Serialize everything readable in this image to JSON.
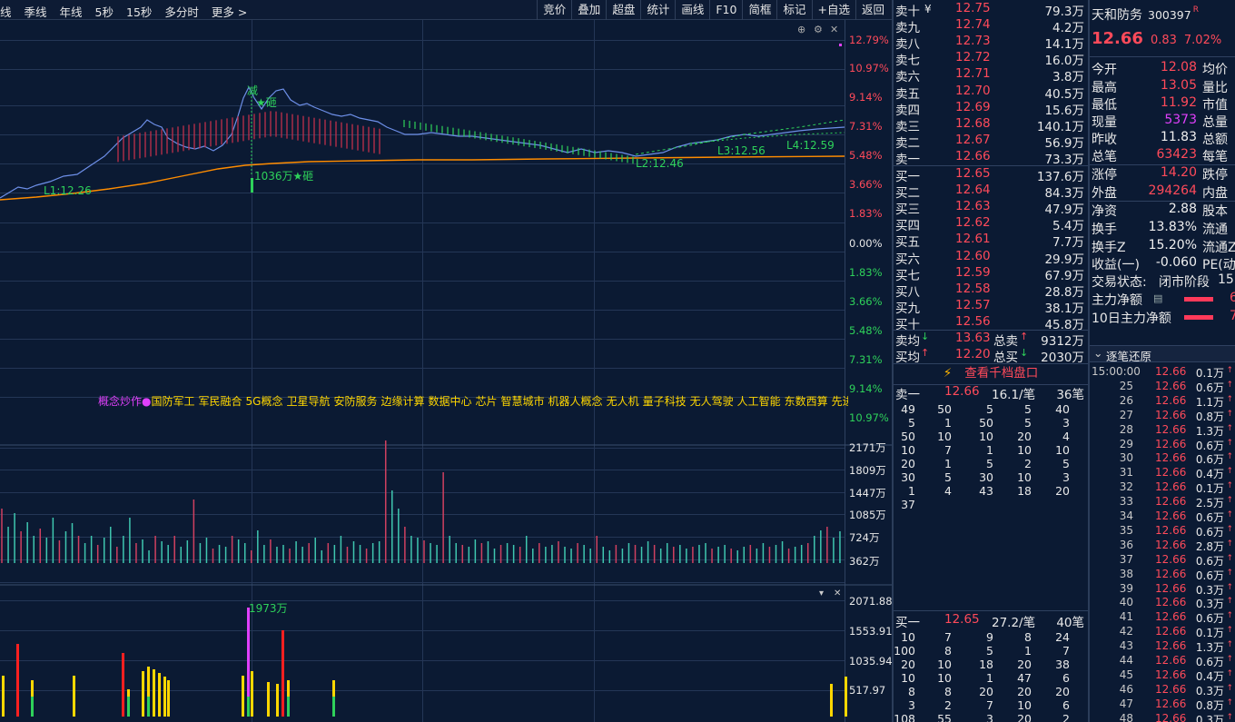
{
  "toolbar": {
    "left": [
      "线",
      "季线",
      "年线",
      "5秒",
      "15秒",
      "多分时",
      "更多 >"
    ],
    "right": [
      "竞价",
      "叠加",
      "超盘",
      "统计",
      "画线",
      "F10",
      "简框",
      "标记",
      "+自选",
      "返回"
    ]
  },
  "price_chart": {
    "right_axis": [
      "12.79%",
      "10.97%",
      "9.14%",
      "7.31%",
      "5.48%",
      "3.66%",
      "1.83%",
      "0.00%",
      "1.83%",
      "3.66%",
      "5.48%",
      "7.31%",
      "9.14%",
      "10.97%"
    ],
    "annotations": [
      "L1:12.26",
      "L2:12.46",
      "L3:12.56",
      "L4:12.59",
      "1036万★砸",
      "★砸",
      "减"
    ],
    "colors": {
      "price_line": "#6d8fe8",
      "avg_line": "#ff8c00",
      "forecast_line": "#2ed15a"
    }
  },
  "concepts": {
    "label": "概念炒作●",
    "items": [
      "国防军工",
      "军民融合",
      "5G概念",
      "卫星导航",
      "安防服务",
      "边缘计算",
      "数据中心",
      "芯片",
      "智慧城市",
      "机器人概念",
      "无人机",
      "量子科技",
      "无人驾驶",
      "人工智能",
      "东数西算",
      "先进封"
    ]
  },
  "volume_chart": {
    "axis": [
      "2171万",
      "1809万",
      "1447万",
      "1085万",
      "724万",
      "362万"
    ]
  },
  "indicator_chart": {
    "axis": [
      "2071.88",
      "1553.91",
      "1035.94",
      "517.97"
    ],
    "peak_label": "1973万"
  },
  "orderbook": {
    "asks": [
      {
        "label": "卖十",
        "flag": "¥",
        "price": "12.75",
        "vol": "79.3万"
      },
      {
        "label": "卖九",
        "price": "12.74",
        "vol": "4.2万"
      },
      {
        "label": "卖八",
        "price": "12.73",
        "vol": "14.1万"
      },
      {
        "label": "卖七",
        "price": "12.72",
        "vol": "16.0万"
      },
      {
        "label": "卖六",
        "price": "12.71",
        "vol": "3.8万"
      },
      {
        "label": "卖五",
        "price": "12.70",
        "vol": "40.5万"
      },
      {
        "label": "卖四",
        "price": "12.69",
        "vol": "15.6万"
      },
      {
        "label": "卖三",
        "price": "12.68",
        "vol": "140.1万"
      },
      {
        "label": "卖二",
        "price": "12.67",
        "vol": "56.9万"
      },
      {
        "label": "卖一",
        "price": "12.66",
        "vol": "73.3万"
      }
    ],
    "bids": [
      {
        "label": "买一",
        "price": "12.65",
        "vol": "137.6万"
      },
      {
        "label": "买二",
        "price": "12.64",
        "vol": "84.3万"
      },
      {
        "label": "买三",
        "price": "12.63",
        "vol": "47.9万"
      },
      {
        "label": "买四",
        "price": "12.62",
        "vol": "5.4万"
      },
      {
        "label": "买五",
        "price": "12.61",
        "vol": "7.7万"
      },
      {
        "label": "买六",
        "price": "12.60",
        "vol": "29.9万"
      },
      {
        "label": "买七",
        "price": "12.59",
        "vol": "67.9万"
      },
      {
        "label": "买八",
        "price": "12.58",
        "vol": "28.8万"
      },
      {
        "label": "买九",
        "price": "12.57",
        "vol": "38.1万"
      },
      {
        "label": "买十",
        "price": "12.56",
        "vol": "45.8万"
      }
    ],
    "avg_sell": {
      "label": "卖均",
      "price": "13.63",
      "total_label": "总卖",
      "total": "9312万"
    },
    "avg_buy": {
      "label": "买均",
      "price": "12.20",
      "total_label": "总买",
      "total": "2030万"
    },
    "view_qiandang": "查看千档盘口",
    "sell1": {
      "label": "卖一",
      "price": "12.66",
      "per": "16.1/笔",
      "count": "36笔"
    },
    "sell1_grid": [
      [
        "49",
        "50",
        "5",
        "5",
        "40"
      ],
      [
        "5",
        "1",
        "50",
        "5",
        "3"
      ],
      [
        "50",
        "10",
        "10",
        "20",
        "4"
      ],
      [
        "10",
        "7",
        "1",
        "10",
        "10"
      ],
      [
        "20",
        "1",
        "5",
        "2",
        "5"
      ],
      [
        "30",
        "5",
        "30",
        "10",
        "3"
      ],
      [
        "1",
        "4",
        "43",
        "18",
        "20"
      ],
      [
        "37",
        "",
        "",
        "",
        ""
      ]
    ],
    "buy1": {
      "label": "买一",
      "price": "12.65",
      "per": "27.2/笔",
      "count": "40笔"
    },
    "buy1_grid": [
      [
        "10",
        "7",
        "9",
        "8",
        "24"
      ],
      [
        "100",
        "8",
        "5",
        "1",
        "7"
      ],
      [
        "20",
        "10",
        "18",
        "20",
        "38"
      ],
      [
        "10",
        "10",
        "1",
        "47",
        "6"
      ],
      [
        "8",
        "8",
        "20",
        "20",
        "20"
      ],
      [
        "3",
        "2",
        "7",
        "10",
        "6"
      ],
      [
        "108",
        "55",
        "3",
        "20",
        "2"
      ]
    ]
  },
  "quote": {
    "name": "天和防务",
    "code": "300397",
    "badge": "R",
    "last": "12.66",
    "change": "0.83",
    "change_pct": "7.02%",
    "rows": [
      {
        "a": "今开",
        "b": "12.08",
        "bc": "red",
        "c": "均价"
      },
      {
        "a": "最高",
        "b": "13.05",
        "bc": "red",
        "c": "量比"
      },
      {
        "a": "最低",
        "b": "11.92",
        "bc": "red",
        "c": "市值"
      },
      {
        "a": "现量",
        "b": "5373",
        "bc": "purple",
        "c": "总量"
      },
      {
        "a": "昨收",
        "b": "11.83",
        "bc": "white",
        "c": "总额"
      },
      {
        "a": "总笔",
        "b": "63423",
        "bc": "red",
        "c": "每笔"
      },
      {
        "a": "涨停",
        "b": "14.20",
        "bc": "red",
        "c": "跌停"
      },
      {
        "a": "外盘",
        "b": "294264",
        "bc": "red",
        "c": "内盘"
      },
      {
        "a": "净资",
        "b": "2.88",
        "bc": "white",
        "c": "股本"
      },
      {
        "a": "换手",
        "b": "13.83%",
        "bc": "white",
        "c": "流通"
      },
      {
        "a": "换手Z",
        "b": "15.20%",
        "bc": "white",
        "c": "流通Z"
      },
      {
        "a": "收益(一)",
        "b": "-0.060",
        "bc": "white",
        "c": "PE(动"
      }
    ],
    "status_label": "交易状态:",
    "status_value": "闭市阶段",
    "status_time": "15:",
    "main_net_label": "主力净额",
    "main_net_value": "6",
    "main_net10_label": "10日主力净额",
    "main_net10_value": "7"
  },
  "trades": {
    "title": "逐笔还原",
    "rows": [
      {
        "t": "15:00:00",
        "p": "12.66",
        "v": "0.1万"
      },
      {
        "t": "25",
        "p": "12.66",
        "v": "0.6万"
      },
      {
        "t": "26",
        "p": "12.66",
        "v": "1.1万"
      },
      {
        "t": "27",
        "p": "12.66",
        "v": "0.8万"
      },
      {
        "t": "28",
        "p": "12.66",
        "v": "1.3万"
      },
      {
        "t": "29",
        "p": "12.66",
        "v": "0.6万"
      },
      {
        "t": "30",
        "p": "12.66",
        "v": "0.6万"
      },
      {
        "t": "31",
        "p": "12.66",
        "v": "0.4万"
      },
      {
        "t": "32",
        "p": "12.66",
        "v": "0.1万"
      },
      {
        "t": "33",
        "p": "12.66",
        "v": "2.5万"
      },
      {
        "t": "34",
        "p": "12.66",
        "v": "0.6万"
      },
      {
        "t": "35",
        "p": "12.66",
        "v": "0.6万"
      },
      {
        "t": "36",
        "p": "12.66",
        "v": "2.8万"
      },
      {
        "t": "37",
        "p": "12.66",
        "v": "0.6万"
      },
      {
        "t": "38",
        "p": "12.66",
        "v": "0.6万"
      },
      {
        "t": "39",
        "p": "12.66",
        "v": "0.3万"
      },
      {
        "t": "40",
        "p": "12.66",
        "v": "0.3万"
      },
      {
        "t": "41",
        "p": "12.66",
        "v": "0.6万"
      },
      {
        "t": "42",
        "p": "12.66",
        "v": "0.1万"
      },
      {
        "t": "43",
        "p": "12.66",
        "v": "1.3万"
      },
      {
        "t": "44",
        "p": "12.66",
        "v": "0.6万"
      },
      {
        "t": "45",
        "p": "12.66",
        "v": "0.4万"
      },
      {
        "t": "46",
        "p": "12.66",
        "v": "0.3万"
      },
      {
        "t": "47",
        "p": "12.66",
        "v": "0.8万"
      },
      {
        "t": "48",
        "p": "12.66",
        "v": "0.3万"
      },
      {
        "t": "49",
        "p": "12.66",
        "v": "0.5万"
      },
      {
        "t": "50",
        "p": "12.66",
        "v": "0.1万"
      }
    ]
  }
}
